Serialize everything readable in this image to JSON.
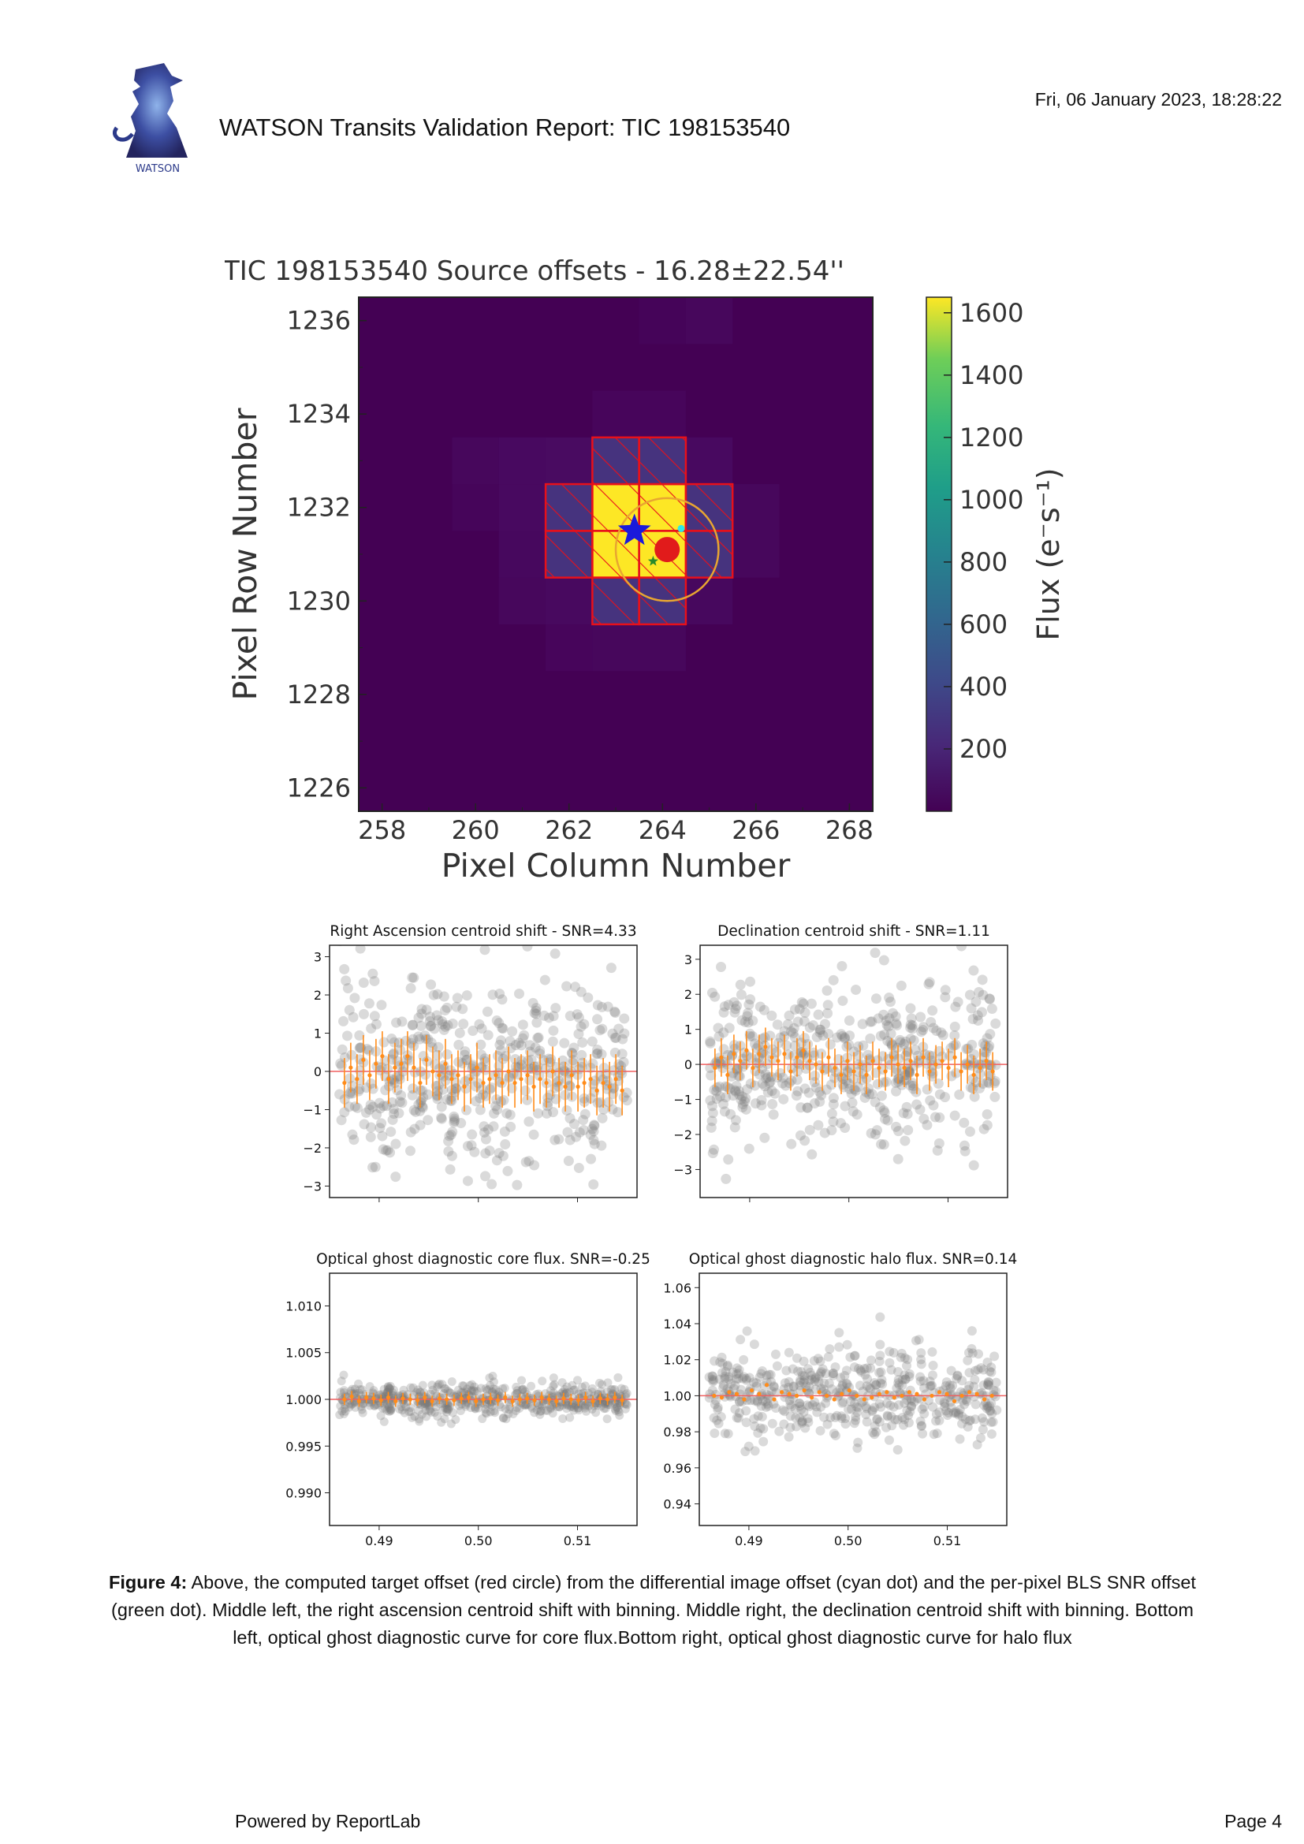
{
  "header": {
    "title": "WATSON Transits Validation Report: TIC 198153540",
    "date": "Fri, 06 January 2023, 18:28:22",
    "logo_text": "WATSON"
  },
  "main_figure": {
    "title": "TIC 198153540 Source offsets - 16.28±22.54''",
    "xlabel": "Pixel Column Number",
    "ylabel": "Pixel Row Number",
    "colorbar_label": "Flux (e⁻s⁻¹)",
    "x_ticks": [
      "258",
      "260",
      "262",
      "264",
      "266",
      "268"
    ],
    "y_ticks": [
      "1236",
      "1234",
      "1232",
      "1230",
      "1228",
      "1226"
    ],
    "colorbar_ticks": [
      "1600",
      "1400",
      "1200",
      "1000",
      "800",
      "600",
      "400",
      "200"
    ],
    "colors": {
      "background": "#440154",
      "bright": "#fde725",
      "mid": "#46337e",
      "aperture": "#e8101a",
      "target": "#e11b1b",
      "star": "#1a1adb",
      "cyan": "#2ee8e8",
      "green": "#2a8a2a",
      "circle": "#e8a531"
    }
  },
  "chart_data": [
    {
      "type": "heatmap",
      "title": "TIC 198153540 Source offsets - 16.28±22.54''",
      "xlabel": "Pixel Column Number",
      "ylabel": "Pixel Row Number",
      "xlim": [
        257.5,
        268.5
      ],
      "ylim": [
        1225.5,
        1236.5
      ],
      "colorbar": {
        "label": "Flux (e⁻s⁻¹)",
        "range": [
          0,
          1650
        ],
        "colormap": "viridis"
      },
      "bright_pixels": [
        {
          "col": 263,
          "row": 1232,
          "flux": 1620
        },
        {
          "col": 263,
          "row": 1231,
          "flux": 1620
        },
        {
          "col": 264,
          "row": 1231,
          "flux": 1620
        },
        {
          "col": 264,
          "row": 1232,
          "flux": 1450
        },
        {
          "col": 263,
          "row": 1233,
          "flux": 330
        },
        {
          "col": 264,
          "row": 1233,
          "flux": 330
        },
        {
          "col": 262,
          "row": 1232,
          "flux": 330
        },
        {
          "col": 262,
          "row": 1231,
          "flux": 330
        },
        {
          "col": 265,
          "row": 1232,
          "flux": 330
        },
        {
          "col": 265,
          "row": 1231,
          "flux": 330
        },
        {
          "col": 263,
          "row": 1230,
          "flux": 330
        },
        {
          "col": 264,
          "row": 1230,
          "flux": 330
        }
      ],
      "markers": [
        {
          "name": "target star",
          "col": 263.4,
          "row": 1231.5,
          "shape": "star",
          "color": "#1a1adb"
        },
        {
          "name": "computed target offset",
          "col": 264.1,
          "row": 1231.1,
          "shape": "circle",
          "color": "#e11b1b"
        },
        {
          "name": "differential image offset",
          "col": 264.4,
          "row": 1231.55,
          "shape": "dot",
          "color": "#2ee8e8"
        },
        {
          "name": "per-pixel BLS SNR offset",
          "col": 263.8,
          "row": 1230.85,
          "shape": "star",
          "color": "#2a8a2a"
        }
      ]
    },
    {
      "type": "scatter",
      "title": "Right Ascension centroid shift - SNR=4.33",
      "xlim": [
        0.485,
        0.516
      ],
      "ylim": [
        -3.3,
        3.3
      ],
      "x_ticks": [
        "0.49",
        "0.50",
        "0.51"
      ],
      "y_ticks": [
        "3",
        "2",
        "1",
        "0",
        "−1",
        "−2",
        "−3"
      ],
      "reference_line": 0,
      "binned_values": [
        -0.3,
        0.1,
        -0.2,
        0.3,
        -0.1,
        0.2,
        0.4,
        -0.2,
        0.1,
        0.2,
        0.4,
        0.1,
        -0.3,
        0.3,
        0.0,
        -0.1,
        0.2,
        -0.2,
        -0.1,
        -0.4,
        -0.2,
        0.1,
        -0.3,
        -0.2,
        -0.1,
        -0.3,
        0.0,
        -0.3,
        -0.2,
        -0.1,
        -0.4,
        -0.2,
        -0.3,
        0.0,
        -0.3,
        -0.4,
        -0.1,
        -0.4,
        -0.3,
        -0.2,
        -0.5,
        -0.3,
        -0.4,
        -0.2,
        -0.5
      ]
    },
    {
      "type": "scatter",
      "title": "Declination centroid shift - SNR=1.11",
      "xlim": [
        0.485,
        0.516
      ],
      "ylim": [
        -3.8,
        3.4
      ],
      "x_ticks": [
        "0.49",
        "0.50",
        "0.51"
      ],
      "y_ticks": [
        "3",
        "2",
        "1",
        "0",
        "−1",
        "−2",
        "−3"
      ],
      "reference_line": 0,
      "binned_values": [
        -0.1,
        0.2,
        -0.3,
        0.3,
        0.1,
        0.4,
        -0.1,
        0.3,
        0.5,
        0.2,
        0.1,
        0.3,
        -0.2,
        0.2,
        0.4,
        0.1,
        0.0,
        -0.2,
        0.2,
        -0.1,
        -0.3,
        0.1,
        -0.2,
        0.0,
        -0.3,
        0.1,
        -0.1,
        -0.2,
        0.2,
        0.0,
        -0.1,
        0.1,
        -0.3,
        0.2,
        -0.2,
        0.0,
        0.1,
        -0.1,
        0.2,
        -0.2,
        0.0,
        -0.3,
        -0.1,
        0.1,
        -0.2
      ]
    },
    {
      "type": "scatter",
      "title": "Optical ghost diagnostic core flux. SNR=-0.25",
      "xlim": [
        0.485,
        0.516
      ],
      "ylim": [
        0.9865,
        1.0135
      ],
      "x_ticks": [
        "0.49",
        "0.50",
        "0.51"
      ],
      "y_ticks": [
        "1.010",
        "1.005",
        "1.000",
        "0.995",
        "0.990"
      ],
      "reference_line": 1.0,
      "binned_values": [
        1.0,
        1.0003,
        0.9998,
        1.0002,
        1.0001,
        0.9999,
        1.0002,
        0.9998,
        1.0001,
        1.0,
        0.9999,
        1.0002,
        0.9998,
        1.0001,
        1.0,
        0.9999,
        1.0001,
        1.0002,
        0.9998,
        1.0,
        1.0001,
        0.9999,
        1.0002,
        0.9998,
        1.0,
        1.0001,
        0.9999,
        1.0002,
        1.0,
        0.9998,
        1.0001,
        1.0,
        0.9999,
        1.0002,
        0.9998,
        1.0001,
        1.0,
        1.0002,
        0.9999
      ]
    },
    {
      "type": "scatter",
      "title": "Optical ghost diagnostic halo flux. SNR=0.14",
      "xlim": [
        0.485,
        0.516
      ],
      "ylim": [
        0.928,
        1.068
      ],
      "x_ticks": [
        "0.49",
        "0.50",
        "0.51"
      ],
      "y_ticks": [
        "1.06",
        "1.04",
        "1.02",
        "1.00",
        "0.98",
        "0.96",
        "0.94"
      ],
      "reference_line": 1.0,
      "binned_values": [
        1.0,
        0.999,
        1.002,
        1.001,
        0.998,
        1.003,
        1.001,
        1.006,
        0.998,
        1.002,
        1.001,
        1.0,
        1.003,
        0.999,
        1.002,
        1.0,
        0.998,
        1.001,
        1.003,
        1.0,
        0.998,
        0.999,
        1.001,
        1.002,
        0.999,
        1.0,
        1.002,
        1.001,
        0.998,
        1.0,
        1.002,
        1.001,
        0.997,
        1.0,
        1.002,
        1.001,
        0.998,
        1.0
      ]
    }
  ],
  "caption": {
    "label": "Figure 4:",
    "text": " Above, the computed target offset (red circle) from the differential image offset (cyan dot) and the per-pixel BLS SNR offset (green dot). Middle left, the right ascension centroid shift with binning. Middle right, the declination centroid shift with binning. Bottom left, optical ghost diagnostic curve for core flux.Bottom right, optical ghost diagnostic curve for halo flux"
  },
  "footer": {
    "left": "Powered by ReportLab",
    "right": "Page 4"
  }
}
